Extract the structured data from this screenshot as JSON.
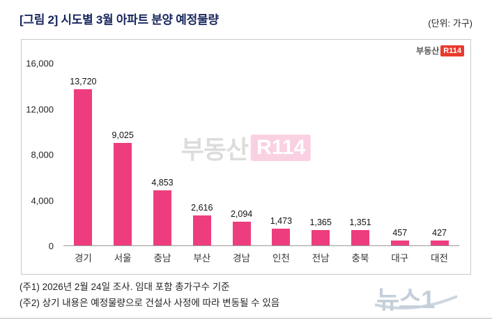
{
  "header": {
    "title": "[그림 2] 시도별 3월 아파트 분양 예정물량",
    "unit_label": "(단위: 가구)"
  },
  "chart_data": {
    "type": "bar",
    "title": "시도별 3월 아파트 분양 예정물량",
    "categories": [
      "경기",
      "서울",
      "충남",
      "부산",
      "경남",
      "인천",
      "전남",
      "충북",
      "대구",
      "대전"
    ],
    "values": [
      13720,
      9025,
      4853,
      2616,
      2094,
      1473,
      1365,
      1351,
      457,
      427
    ],
    "value_labels": [
      "13,720",
      "9,025",
      "4,853",
      "2,616",
      "2,094",
      "1,473",
      "1,365",
      "1,351",
      "457",
      "427"
    ],
    "xlabel": "",
    "ylabel": "가구",
    "ylim": [
      0,
      16000
    ],
    "yticks": [
      0,
      4000,
      8000,
      12000,
      16000
    ],
    "ytick_labels": [
      "0",
      "4,000",
      "8,000",
      "12,000",
      "16,000"
    ],
    "bar_color": "#ee3d7f",
    "grid": false,
    "legend_position": "none"
  },
  "branding": {
    "logo_text": "부동산",
    "logo_badge": "R114",
    "watermark_text": "부동산",
    "watermark_badge": "R114",
    "news_watermark": "뉴스1"
  },
  "notes": {
    "line1": "(주1) 2026년 2월 24일 조사. 임대 포함 총가구수 기준",
    "line2": "(주2) 상기 내용은 예정물량으로 건설사 사정에 따라 변동될 수 있음"
  }
}
